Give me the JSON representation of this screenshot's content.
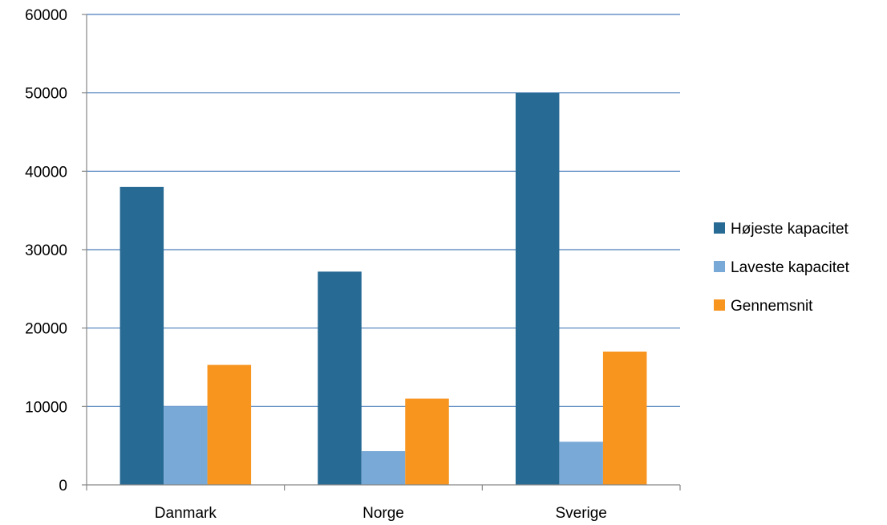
{
  "chart_data": {
    "type": "bar",
    "title": "",
    "xlabel": "",
    "ylabel": "",
    "categories": [
      "Danmark",
      "Norge",
      "Sverige"
    ],
    "series": [
      {
        "name": "Højeste kapacitet",
        "color": "#276a94",
        "values": [
          38000,
          27200,
          50000
        ]
      },
      {
        "name": "Laveste kapacitet",
        "color": "#79a9d7",
        "values": [
          10000,
          4300,
          5500
        ]
      },
      {
        "name": "Gennemsnit",
        "color": "#f7951f",
        "values": [
          15300,
          11000,
          17000
        ]
      }
    ],
    "ylim": [
      0,
      60000
    ],
    "yticks": [
      "0",
      "10000",
      "20000",
      "30000",
      "40000",
      "50000",
      "60000"
    ],
    "grid": true,
    "grid_color": "#4a7ebb",
    "legend_position": "right"
  }
}
